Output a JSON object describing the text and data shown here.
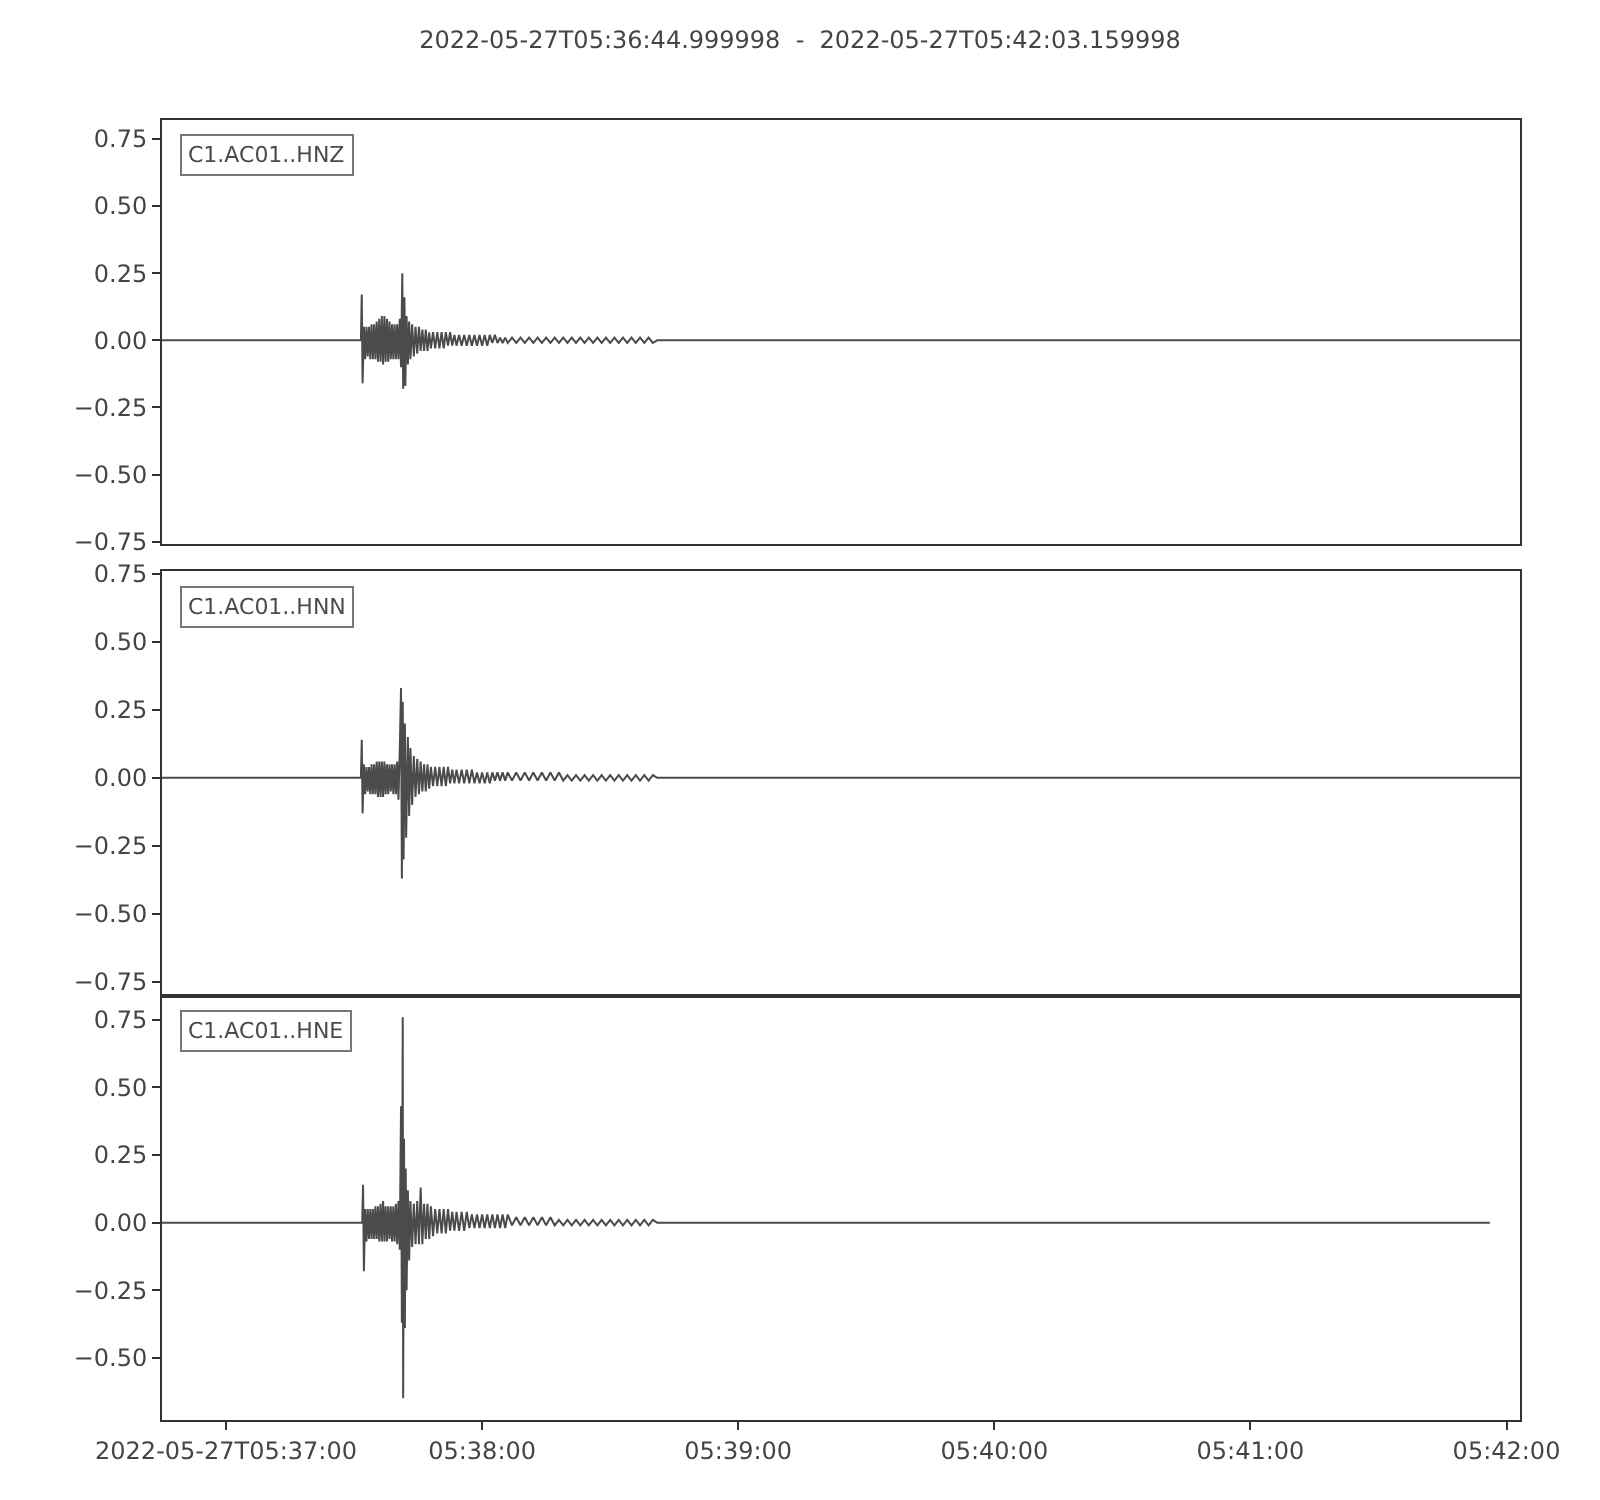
{
  "chart_data": [
    {
      "type": "line",
      "title": "2022-05-27T05:36:44.999998  -  2022-05-27T05:42:03.159998",
      "x": [
        "2022-05-27T05:36:44.999998",
        "2022-05-27T05:37:31.6",
        "2022-05-27T05:37:31.8",
        "2022-05-27T05:37:32.0",
        "2022-05-27T05:37:32.3",
        "2022-05-27T05:37:32.6",
        "2022-05-27T05:37:32.9",
        "2022-05-27T05:37:33.2",
        "2022-05-27T05:37:33.5",
        "2022-05-27T05:37:33.8",
        "2022-05-27T05:37:34.1",
        "2022-05-27T05:37:34.4",
        "2022-05-27T05:37:34.7",
        "2022-05-27T05:37:35.0",
        "2022-05-27T05:37:35.3",
        "2022-05-27T05:37:35.6",
        "2022-05-27T05:37:35.9",
        "2022-05-27T05:37:36.2",
        "2022-05-27T05:37:36.5",
        "2022-05-27T05:37:36.8",
        "2022-05-27T05:37:37.1",
        "2022-05-27T05:37:37.4",
        "2022-05-27T05:37:37.7",
        "2022-05-27T05:37:38.0",
        "2022-05-27T05:37:38.3",
        "2022-05-27T05:37:38.6",
        "2022-05-27T05:37:38.9",
        "2022-05-27T05:37:39.2",
        "2022-05-27T05:37:39.5",
        "2022-05-27T05:37:39.8",
        "2022-05-27T05:37:40.1",
        "2022-05-27T05:37:40.4",
        "2022-05-27T05:37:40.7",
        "2022-05-27T05:37:41.0",
        "2022-05-27T05:37:41.3",
        "2022-05-27T05:37:41.5",
        "2022-05-27T05:37:41.8",
        "2022-05-27T05:37:42.0",
        "2022-05-27T05:37:42.3",
        "2022-05-27T05:37:42.6",
        "2022-05-27T05:37:42.9",
        "2022-05-27T05:37:43.2",
        "2022-05-27T05:37:43.6",
        "2022-05-27T05:37:44.0",
        "2022-05-27T05:37:44.4",
        "2022-05-27T05:37:44.8",
        "2022-05-27T05:37:45.2",
        "2022-05-27T05:37:45.6",
        "2022-05-27T05:37:46.0",
        "2022-05-27T05:37:46.4",
        "2022-05-27T05:37:46.8",
        "2022-05-27T05:37:47.2",
        "2022-05-27T05:37:47.6",
        "2022-05-27T05:37:48.0",
        "2022-05-27T05:37:48.5",
        "2022-05-27T05:37:49.0",
        "2022-05-27T05:37:49.5",
        "2022-05-27T05:37:50.0",
        "2022-05-27T05:37:50.5",
        "2022-05-27T05:37:51.0",
        "2022-05-27T05:37:51.5",
        "2022-05-27T05:37:52.0",
        "2022-05-27T05:37:52.5",
        "2022-05-27T05:37:53.0",
        "2022-05-27T05:37:53.5",
        "2022-05-27T05:37:54.0",
        "2022-05-27T05:37:54.6",
        "2022-05-27T05:37:55.2",
        "2022-05-27T05:37:55.8",
        "2022-05-27T05:37:56.4",
        "2022-05-27T05:37:57.0",
        "2022-05-27T05:37:57.6",
        "2022-05-27T05:37:58.2",
        "2022-05-27T05:37:58.8",
        "2022-05-27T05:37:59.4",
        "2022-05-27T05:38:00.0",
        "2022-05-27T05:38:00.6",
        "2022-05-27T05:38:01.2",
        "2022-05-27T05:38:01.8",
        "2022-05-27T05:38:02.4",
        "2022-05-27T05:38:03.0",
        "2022-05-27T05:38:03.6",
        "2022-05-27T05:38:04.2",
        "2022-05-27T05:38:04.8",
        "2022-05-27T05:38:05.4",
        "2022-05-27T05:38:06.0",
        "2022-05-27T05:38:07",
        "2022-05-27T05:38:08",
        "2022-05-27T05:38:09",
        "2022-05-27T05:38:10",
        "2022-05-27T05:38:11",
        "2022-05-27T05:38:12",
        "2022-05-27T05:38:13",
        "2022-05-27T05:38:14",
        "2022-05-27T05:38:15",
        "2022-05-27T05:38:16",
        "2022-05-27T05:38:17",
        "2022-05-27T05:38:18",
        "2022-05-27T05:38:19",
        "2022-05-27T05:38:20",
        "2022-05-27T05:38:21",
        "2022-05-27T05:38:22",
        "2022-05-27T05:38:23",
        "2022-05-27T05:38:24",
        "2022-05-27T05:38:25",
        "2022-05-27T05:38:26",
        "2022-05-27T05:38:27",
        "2022-05-27T05:38:28",
        "2022-05-27T05:38:29",
        "2022-05-27T05:38:30",
        "2022-05-27T05:38:31",
        "2022-05-27T05:38:32",
        "2022-05-27T05:38:33",
        "2022-05-27T05:38:34",
        "2022-05-27T05:38:35",
        "2022-05-27T05:38:36",
        "2022-05-27T05:38:37",
        "2022-05-27T05:38:38",
        "2022-05-27T05:38:39",
        "2022-05-27T05:38:40",
        "2022-05-27T05:38:41",
        "2022-05-27T05:42:03.159998"
      ],
      "series": [
        {
          "name": "C1.AC01..HNZ",
          "color": "#4b4b4b",
          "values": [
            0,
            0,
            0.17,
            -0.16,
            0.05,
            -0.07,
            0.05,
            -0.06,
            0.05,
            -0.07,
            0.06,
            -0.07,
            0.06,
            -0.07,
            0.07,
            -0.08,
            0.08,
            -0.08,
            0.09,
            -0.09,
            0.09,
            -0.08,
            0.08,
            -0.08,
            0.07,
            -0.07,
            0.06,
            -0.07,
            0.06,
            -0.07,
            0.06,
            -0.07,
            0.08,
            -0.1,
            0.25,
            -0.18,
            0.16,
            -0.17,
            0.09,
            -0.09,
            0.07,
            -0.07,
            0.06,
            -0.06,
            0.05,
            -0.05,
            0.05,
            -0.04,
            0.04,
            -0.04,
            0.04,
            -0.04,
            0.03,
            -0.03,
            0.03,
            -0.03,
            0.03,
            -0.03,
            0.03,
            -0.03,
            0.03,
            -0.02,
            0.03,
            -0.02,
            0.02,
            -0.02,
            0.02,
            -0.02,
            0.02,
            -0.02,
            0.02,
            -0.02,
            0.02,
            -0.02,
            0.02,
            -0.02,
            0.02,
            -0.02,
            0.02,
            -0.01,
            0.02,
            -0.01,
            0.01,
            -0.01,
            0.01,
            -0.01,
            0.01,
            -0.01,
            0.01,
            -0.01,
            0.01,
            -0.01,
            0.01,
            -0.01,
            0.01,
            -0.01,
            0.01,
            -0.01,
            0.01,
            -0.01,
            0.01,
            -0.01,
            0.01,
            -0.01,
            0.01,
            -0.01,
            0.01,
            -0.01,
            0.01,
            -0.01,
            0.01,
            -0.01,
            0.01,
            -0.01,
            0.01,
            -0.01,
            0.01,
            -0.01,
            0.01,
            -0.01,
            0,
            0
          ]
        }
      ],
      "xlim": [
        "2022-05-27T05:36:44.999998",
        "2022-05-27T05:42:03.159998"
      ],
      "ylim": [
        -0.76,
        0.82
      ],
      "yticks": [
        {
          "value": 0.75,
          "label": "0.75"
        },
        {
          "value": 0.5,
          "label": "0.50"
        },
        {
          "value": 0.25,
          "label": "0.25"
        },
        {
          "value": 0,
          "label": "0.00"
        },
        {
          "value": -0.25,
          "label": "−0.25"
        },
        {
          "value": -0.5,
          "label": "−0.50"
        },
        {
          "value": -0.75,
          "label": "−0.75"
        }
      ],
      "tick_labels": "y"
    },
    {
      "type": "line",
      "x": [
        "2022-05-27T05:36:44.999998",
        "2022-05-27T05:37:31.6",
        "2022-05-27T05:37:31.8",
        "2022-05-27T05:37:32.0",
        "2022-05-27T05:37:32.3",
        "2022-05-27T05:37:32.6",
        "2022-05-27T05:37:32.9",
        "2022-05-27T05:37:33.2",
        "2022-05-27T05:37:33.5",
        "2022-05-27T05:37:33.8",
        "2022-05-27T05:37:34.1",
        "2022-05-27T05:37:34.4",
        "2022-05-27T05:37:34.7",
        "2022-05-27T05:37:35.0",
        "2022-05-27T05:37:35.3",
        "2022-05-27T05:37:35.6",
        "2022-05-27T05:37:35.9",
        "2022-05-27T05:37:36.2",
        "2022-05-27T05:37:36.5",
        "2022-05-27T05:37:36.8",
        "2022-05-27T05:37:37.1",
        "2022-05-27T05:37:37.4",
        "2022-05-27T05:37:37.7",
        "2022-05-27T05:37:38.0",
        "2022-05-27T05:37:38.3",
        "2022-05-27T05:37:38.6",
        "2022-05-27T05:37:38.9",
        "2022-05-27T05:37:39.2",
        "2022-05-27T05:37:39.5",
        "2022-05-27T05:37:39.8",
        "2022-05-27T05:37:40.1",
        "2022-05-27T05:37:40.4",
        "2022-05-27T05:37:40.7",
        "2022-05-27T05:37:41.0",
        "2022-05-27T05:37:41.2",
        "2022-05-27T05:37:41.4",
        "2022-05-27T05:37:41.6",
        "2022-05-27T05:37:41.9",
        "2022-05-27T05:37:42.2",
        "2022-05-27T05:37:42.6",
        "2022-05-27T05:37:42.9",
        "2022-05-27T05:37:43.2",
        "2022-05-27T05:37:43.6",
        "2022-05-27T05:37:44.0",
        "2022-05-27T05:37:44.4",
        "2022-05-27T05:37:44.8",
        "2022-05-27T05:37:45.2",
        "2022-05-27T05:37:45.6",
        "2022-05-27T05:37:46.0",
        "2022-05-27T05:37:46.4",
        "2022-05-27T05:37:46.8",
        "2022-05-27T05:37:47.2",
        "2022-05-27T05:37:47.6",
        "2022-05-27T05:37:48.0",
        "2022-05-27T05:37:48.5",
        "2022-05-27T05:37:49.0",
        "2022-05-27T05:37:49.5",
        "2022-05-27T05:37:50.0",
        "2022-05-27T05:37:50.5",
        "2022-05-27T05:37:51.0",
        "2022-05-27T05:37:51.5",
        "2022-05-27T05:37:52.0",
        "2022-05-27T05:37:52.5",
        "2022-05-27T05:37:53.0",
        "2022-05-27T05:37:53.5",
        "2022-05-27T05:37:54.0",
        "2022-05-27T05:37:54.6",
        "2022-05-27T05:37:55.2",
        "2022-05-27T05:37:55.8",
        "2022-05-27T05:37:56.4",
        "2022-05-27T05:37:57.0",
        "2022-05-27T05:37:57.6",
        "2022-05-27T05:37:58.2",
        "2022-05-27T05:37:58.8",
        "2022-05-27T05:37:59.4",
        "2022-05-27T05:38:00.0",
        "2022-05-27T05:38:00.6",
        "2022-05-27T05:38:01.2",
        "2022-05-27T05:38:01.8",
        "2022-05-27T05:38:02.4",
        "2022-05-27T05:38:03.0",
        "2022-05-27T05:38:03.6",
        "2022-05-27T05:38:04.2",
        "2022-05-27T05:38:04.8",
        "2022-05-27T05:38:05.4",
        "2022-05-27T05:38:06.0",
        "2022-05-27T05:38:07",
        "2022-05-27T05:38:08",
        "2022-05-27T05:38:09",
        "2022-05-27T05:38:10",
        "2022-05-27T05:38:11",
        "2022-05-27T05:38:12",
        "2022-05-27T05:38:13",
        "2022-05-27T05:38:14",
        "2022-05-27T05:38:15",
        "2022-05-27T05:38:16",
        "2022-05-27T05:38:17",
        "2022-05-27T05:38:18",
        "2022-05-27T05:38:19",
        "2022-05-27T05:38:20",
        "2022-05-27T05:38:21",
        "2022-05-27T05:38:22",
        "2022-05-27T05:38:23",
        "2022-05-27T05:38:24",
        "2022-05-27T05:38:25",
        "2022-05-27T05:38:26",
        "2022-05-27T05:38:27",
        "2022-05-27T05:38:28",
        "2022-05-27T05:38:29",
        "2022-05-27T05:38:30",
        "2022-05-27T05:38:31",
        "2022-05-27T05:38:32",
        "2022-05-27T05:38:33",
        "2022-05-27T05:38:34",
        "2022-05-27T05:38:35",
        "2022-05-27T05:38:36",
        "2022-05-27T05:38:37",
        "2022-05-27T05:38:38",
        "2022-05-27T05:38:39",
        "2022-05-27T05:38:40",
        "2022-05-27T05:38:41",
        "2022-05-27T05:42:03.159998"
      ],
      "series": [
        {
          "name": "C1.AC01..HNN",
          "color": "#4b4b4b",
          "values": [
            0,
            0,
            0.14,
            -0.13,
            0.05,
            -0.06,
            0.04,
            -0.05,
            0.04,
            -0.06,
            0.05,
            -0.06,
            0.05,
            -0.06,
            0.06,
            -0.07,
            0.06,
            -0.07,
            0.06,
            -0.07,
            0.06,
            -0.06,
            0.05,
            -0.06,
            0.05,
            -0.05,
            0.05,
            -0.06,
            0.05,
            -0.06,
            0.06,
            -0.08,
            0.1,
            0.33,
            -0.37,
            0.28,
            -0.3,
            0.2,
            -0.22,
            0.15,
            -0.14,
            0.11,
            -0.1,
            0.08,
            -0.07,
            0.07,
            -0.06,
            0.06,
            -0.05,
            0.05,
            -0.05,
            0.05,
            -0.04,
            0.04,
            -0.03,
            0.04,
            -0.03,
            0.04,
            -0.03,
            0.04,
            -0.03,
            0.04,
            -0.02,
            0.03,
            -0.02,
            0.03,
            -0.02,
            0.03,
            -0.02,
            0.03,
            -0.02,
            0.03,
            -0.02,
            0.02,
            -0.02,
            0.02,
            -0.02,
            0.02,
            -0.02,
            0.02,
            -0.01,
            0.02,
            -0.01,
            0.02,
            -0.01,
            0.02,
            -0.01,
            0.02,
            -0.01,
            0.02,
            -0.01,
            0.02,
            -0.01,
            0.02,
            -0.01,
            0.02,
            -0.01,
            0.02,
            -0.01,
            0.01,
            -0.01,
            0.01,
            -0.01,
            0.01,
            -0.01,
            0.01,
            -0.01,
            0.01,
            -0.01,
            0.01,
            -0.01,
            0.01,
            -0.01,
            0.01,
            -0.01,
            0.01,
            -0.01,
            0.01,
            -0.01,
            0.01,
            0,
            0
          ]
        }
      ],
      "xlim": [
        "2022-05-27T05:36:44.999998",
        "2022-05-27T05:42:03.159998"
      ],
      "ylim": [
        -0.8,
        0.76
      ],
      "yticks": [
        {
          "value": 0.75,
          "label": "0.75"
        },
        {
          "value": 0.5,
          "label": "0.50"
        },
        {
          "value": 0.25,
          "label": "0.25"
        },
        {
          "value": 0,
          "label": "0.00"
        },
        {
          "value": -0.25,
          "label": "−0.25"
        },
        {
          "value": -0.5,
          "label": "−0.50"
        },
        {
          "value": -0.75,
          "label": "−0.75"
        }
      ],
      "tick_labels": "y"
    },
    {
      "type": "line",
      "x": [
        "2022-05-27T05:36:44.999998",
        "2022-05-27T05:37:31.9",
        "2022-05-27T05:37:32.1",
        "2022-05-27T05:37:32.3",
        "2022-05-27T05:37:32.6",
        "2022-05-27T05:37:32.9",
        "2022-05-27T05:37:33.2",
        "2022-05-27T05:37:33.5",
        "2022-05-27T05:37:33.8",
        "2022-05-27T05:37:34.1",
        "2022-05-27T05:37:34.4",
        "2022-05-27T05:37:34.7",
        "2022-05-27T05:37:35.0",
        "2022-05-27T05:37:35.3",
        "2022-05-27T05:37:35.6",
        "2022-05-27T05:37:35.9",
        "2022-05-27T05:37:36.2",
        "2022-05-27T05:37:36.5",
        "2022-05-27T05:37:36.8",
        "2022-05-27T05:37:37.1",
        "2022-05-27T05:37:37.4",
        "2022-05-27T05:37:37.7",
        "2022-05-27T05:37:38.0",
        "2022-05-27T05:37:38.3",
        "2022-05-27T05:37:38.6",
        "2022-05-27T05:37:38.9",
        "2022-05-27T05:37:39.2",
        "2022-05-27T05:37:39.5",
        "2022-05-27T05:37:39.8",
        "2022-05-27T05:37:40.1",
        "2022-05-27T05:37:40.4",
        "2022-05-27T05:37:40.7",
        "2022-05-27T05:37:41.0",
        "2022-05-27T05:37:41.2",
        "2022-05-27T05:37:41.4",
        "2022-05-27T05:37:41.5",
        "2022-05-27T05:37:41.7",
        "2022-05-27T05:37:41.9",
        "2022-05-27T05:37:42.1",
        "2022-05-27T05:37:42.3",
        "2022-05-27T05:37:42.6",
        "2022-05-27T05:37:42.9",
        "2022-05-27T05:37:43.2",
        "2022-05-27T05:37:43.6",
        "2022-05-27T05:37:44.0",
        "2022-05-27T05:37:44.4",
        "2022-05-27T05:37:44.8",
        "2022-05-27T05:37:45.2",
        "2022-05-27T05:37:45.6",
        "2022-05-27T05:37:46.0",
        "2022-05-27T05:37:46.4",
        "2022-05-27T05:37:46.8",
        "2022-05-27T05:37:47.2",
        "2022-05-27T05:37:47.6",
        "2022-05-27T05:37:48.0",
        "2022-05-27T05:37:48.5",
        "2022-05-27T05:37:49.0",
        "2022-05-27T05:37:49.5",
        "2022-05-27T05:37:50.0",
        "2022-05-27T05:37:50.5",
        "2022-05-27T05:37:51.0",
        "2022-05-27T05:37:51.5",
        "2022-05-27T05:37:52.0",
        "2022-05-27T05:37:52.5",
        "2022-05-27T05:37:53.0",
        "2022-05-27T05:37:53.5",
        "2022-05-27T05:37:54.0",
        "2022-05-27T05:37:54.6",
        "2022-05-27T05:37:55.2",
        "2022-05-27T05:37:55.8",
        "2022-05-27T05:37:56.4",
        "2022-05-27T05:37:57.0",
        "2022-05-27T05:37:57.6",
        "2022-05-27T05:37:58.2",
        "2022-05-27T05:37:58.8",
        "2022-05-27T05:37:59.4",
        "2022-05-27T05:38:00.0",
        "2022-05-27T05:38:00.6",
        "2022-05-27T05:38:01.2",
        "2022-05-27T05:38:01.8",
        "2022-05-27T05:38:02.4",
        "2022-05-27T05:38:03.0",
        "2022-05-27T05:38:03.6",
        "2022-05-27T05:38:04.2",
        "2022-05-27T05:38:04.8",
        "2022-05-27T05:38:05.4",
        "2022-05-27T05:38:06.0",
        "2022-05-27T05:38:07",
        "2022-05-27T05:38:08",
        "2022-05-27T05:38:09",
        "2022-05-27T05:38:10",
        "2022-05-27T05:38:11",
        "2022-05-27T05:38:12",
        "2022-05-27T05:38:13",
        "2022-05-27T05:38:14",
        "2022-05-27T05:38:15",
        "2022-05-27T05:38:16",
        "2022-05-27T05:38:17",
        "2022-05-27T05:38:18",
        "2022-05-27T05:38:19",
        "2022-05-27T05:38:20",
        "2022-05-27T05:38:21",
        "2022-05-27T05:38:22",
        "2022-05-27T05:38:23",
        "2022-05-27T05:38:24",
        "2022-05-27T05:38:25",
        "2022-05-27T05:38:26",
        "2022-05-27T05:38:27",
        "2022-05-27T05:38:28",
        "2022-05-27T05:38:29",
        "2022-05-27T05:38:30",
        "2022-05-27T05:38:31",
        "2022-05-27T05:38:32",
        "2022-05-27T05:38:33",
        "2022-05-27T05:38:34",
        "2022-05-27T05:38:35",
        "2022-05-27T05:38:36",
        "2022-05-27T05:38:37",
        "2022-05-27T05:38:38",
        "2022-05-27T05:38:39",
        "2022-05-27T05:38:40",
        "2022-05-27T05:38:41",
        "2022-05-27T05:41:56.1"
      ],
      "series": [
        {
          "name": "C1.AC01..HNE",
          "color": "#4b4b4b",
          "values": [
            0,
            0,
            0.14,
            -0.18,
            0.05,
            -0.07,
            0.05,
            -0.06,
            0.05,
            -0.06,
            0.05,
            -0.06,
            0.06,
            -0.06,
            0.06,
            -0.07,
            0.07,
            -0.07,
            0.08,
            -0.07,
            0.06,
            -0.07,
            0.06,
            -0.06,
            0.06,
            -0.07,
            0.06,
            -0.07,
            0.07,
            -0.08,
            0.08,
            -0.1,
            0.43,
            -0.37,
            0.76,
            -0.65,
            0.31,
            -0.39,
            0.2,
            -0.25,
            0.12,
            -0.14,
            0.08,
            -0.09,
            0.07,
            -0.08,
            0.08,
            -0.08,
            0.13,
            -0.08,
            0.07,
            -0.06,
            0.07,
            -0.06,
            0.06,
            -0.05,
            0.05,
            -0.04,
            0.05,
            -0.04,
            0.05,
            -0.04,
            0.05,
            -0.03,
            0.04,
            -0.03,
            0.04,
            -0.03,
            0.04,
            -0.03,
            0.04,
            -0.02,
            0.03,
            -0.02,
            0.03,
            -0.02,
            0.03,
            -0.02,
            0.03,
            -0.02,
            0.03,
            -0.02,
            0.03,
            -0.02,
            0.03,
            -0.02,
            0.03,
            -0.01,
            0.02,
            -0.01,
            0.02,
            -0.01,
            0.02,
            -0.01,
            0.02,
            -0.01,
            0.02,
            -0.01,
            0.01,
            -0.01,
            0.01,
            -0.01,
            0.01,
            -0.01,
            0.01,
            -0.01,
            0.01,
            -0.01,
            0.01,
            -0.01,
            0.01,
            -0.01,
            0.01,
            -0.01,
            0.01,
            -0.01,
            0.01,
            -0.01,
            0.01,
            -0.01,
            0.01,
            0,
            0
          ]
        }
      ],
      "xlim": [
        "2022-05-27T05:36:44.999998",
        "2022-05-27T05:42:03.159998"
      ],
      "xticks": [
        {
          "value": "2022-05-27T05:37:00",
          "label": "2022-05-27T05:37:00"
        },
        {
          "value": "2022-05-27T05:38:00",
          "label": "05:38:00"
        },
        {
          "value": "2022-05-27T05:39:00",
          "label": "05:39:00"
        },
        {
          "value": "2022-05-27T05:40:00",
          "label": "05:40:00"
        },
        {
          "value": "2022-05-27T05:41:00",
          "label": "05:41:00"
        },
        {
          "value": "2022-05-27T05:42:00",
          "label": "05:42:00"
        }
      ],
      "ylim": [
        -0.73,
        0.84
      ],
      "yticks": [
        {
          "value": 0.75,
          "label": "0.75"
        },
        {
          "value": 0.5,
          "label": "0.50"
        },
        {
          "value": 0.25,
          "label": "0.25"
        },
        {
          "value": 0,
          "label": "0.00"
        },
        {
          "value": -0.25,
          "label": "−0.25"
        },
        {
          "value": -0.5,
          "label": "−0.50"
        }
      ]
    }
  ]
}
